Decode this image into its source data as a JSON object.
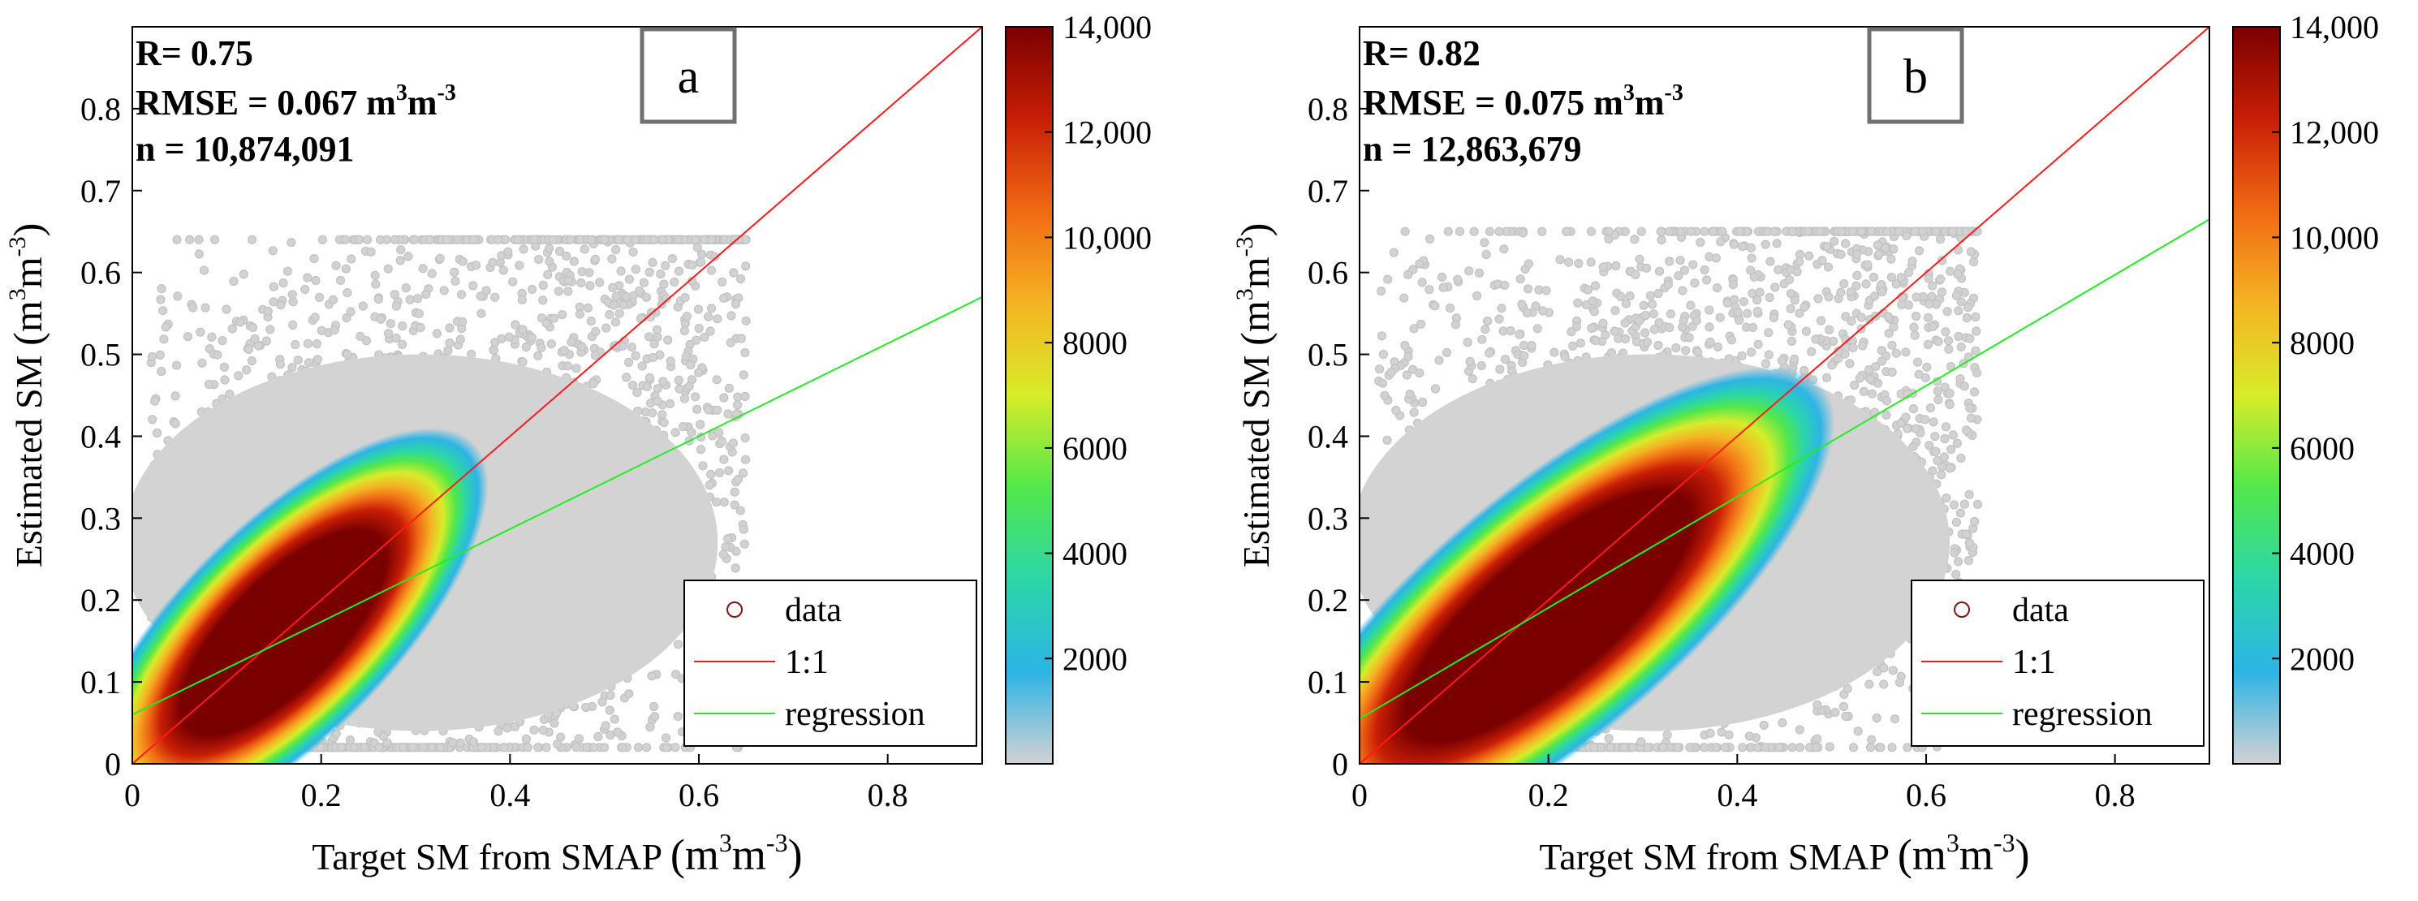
{
  "chart_data": [
    {
      "type": "scatter",
      "panel_label": "a",
      "stats": {
        "r": "R= 0.75",
        "rmse_prefix": "RMSE = 0.067 m",
        "rmse_e1": "3",
        "rmse_mid": "m",
        "rmse_e2": "-3",
        "n": "n = 10,874,091"
      },
      "xlabel": {
        "text": "Target SM from SMAP ",
        "unit": "(m",
        "e1": "3",
        "mid": "m",
        "e2": "-3",
        "close": ")"
      },
      "ylabel": {
        "text": "Estimated SM ",
        "unit": "(m",
        "e1": "3",
        "mid": "m",
        "e2": "-3",
        "close": ")"
      },
      "xlim": [
        0,
        0.9
      ],
      "ylim": [
        0,
        0.9
      ],
      "xticks": [
        "0",
        "0.2",
        "0.4",
        "0.6",
        "0.8"
      ],
      "yticks": [
        "0",
        "0.1",
        "0.2",
        "0.3",
        "0.4",
        "0.5",
        "0.6",
        "0.7",
        "0.8"
      ],
      "one_to_one": [
        [
          0,
          0
        ],
        [
          0.9,
          0.9
        ]
      ],
      "regression": [
        [
          0,
          0.06
        ],
        [
          0.9,
          0.57
        ]
      ],
      "legend": [
        "data",
        "1:1",
        "regression"
      ],
      "colorbar": {
        "min": 0,
        "max": 14000,
        "ticks": [
          "2000",
          "4000",
          "6000",
          "8000",
          "10,000",
          "12,000",
          "14,000"
        ],
        "colors": [
          "#d2d2d2",
          "#2db4e6",
          "#2cd6a8",
          "#52e84a",
          "#d8ec2a",
          "#f5b324",
          "#f06a14",
          "#c81e06",
          "#7a0000"
        ]
      },
      "density": {
        "cloud_x": [
          0.02,
          0.65
        ],
        "cloud_y": [
          0.02,
          0.64
        ],
        "core": {
          "cx": 0.16,
          "cy": 0.16,
          "angle_deg": 45,
          "a": 0.15,
          "b": 0.06
        }
      }
    },
    {
      "type": "scatter",
      "panel_label": "b",
      "stats": {
        "r": "R= 0.82",
        "rmse_prefix": "RMSE = 0.075 m",
        "rmse_e1": "3",
        "rmse_mid": "m",
        "rmse_e2": "-3",
        "n": "n = 12,863,679"
      },
      "xlabel": {
        "text": "Target SM from SMAP ",
        "unit": "(m",
        "e1": "3",
        "mid": "m",
        "e2": "-3",
        "close": ")"
      },
      "ylabel": {
        "text": "Estimated SM ",
        "unit": "(m",
        "e1": "3",
        "mid": "m",
        "e2": "-3",
        "close": ")"
      },
      "xlim": [
        0,
        0.9
      ],
      "ylim": [
        0,
        0.9
      ],
      "xticks": [
        "0",
        "0.2",
        "0.4",
        "0.6",
        "0.8"
      ],
      "yticks": [
        "0",
        "0.1",
        "0.2",
        "0.3",
        "0.4",
        "0.5",
        "0.6",
        "0.7",
        "0.8"
      ],
      "one_to_one": [
        [
          0,
          0
        ],
        [
          0.9,
          0.9
        ]
      ],
      "regression": [
        [
          0,
          0.055
        ],
        [
          0.9,
          0.665
        ]
      ],
      "legend": [
        "data",
        "1:1",
        "regression"
      ],
      "colorbar": {
        "min": 0,
        "max": 14000,
        "ticks": [
          "2000",
          "4000",
          "6000",
          "8000",
          "10,000",
          "12,000",
          "14,000"
        ],
        "colors": [
          "#d2d2d2",
          "#2db4e6",
          "#2cd6a8",
          "#52e84a",
          "#d8ec2a",
          "#f5b324",
          "#f06a14",
          "#c81e06",
          "#7a0000"
        ]
      },
      "density": {
        "cloud_x": [
          0.02,
          0.655
        ],
        "cloud_y": [
          0.02,
          0.65
        ],
        "core": {
          "cx": 0.2,
          "cy": 0.18,
          "angle_deg": 40,
          "a": 0.2,
          "b": 0.07
        }
      }
    }
  ]
}
